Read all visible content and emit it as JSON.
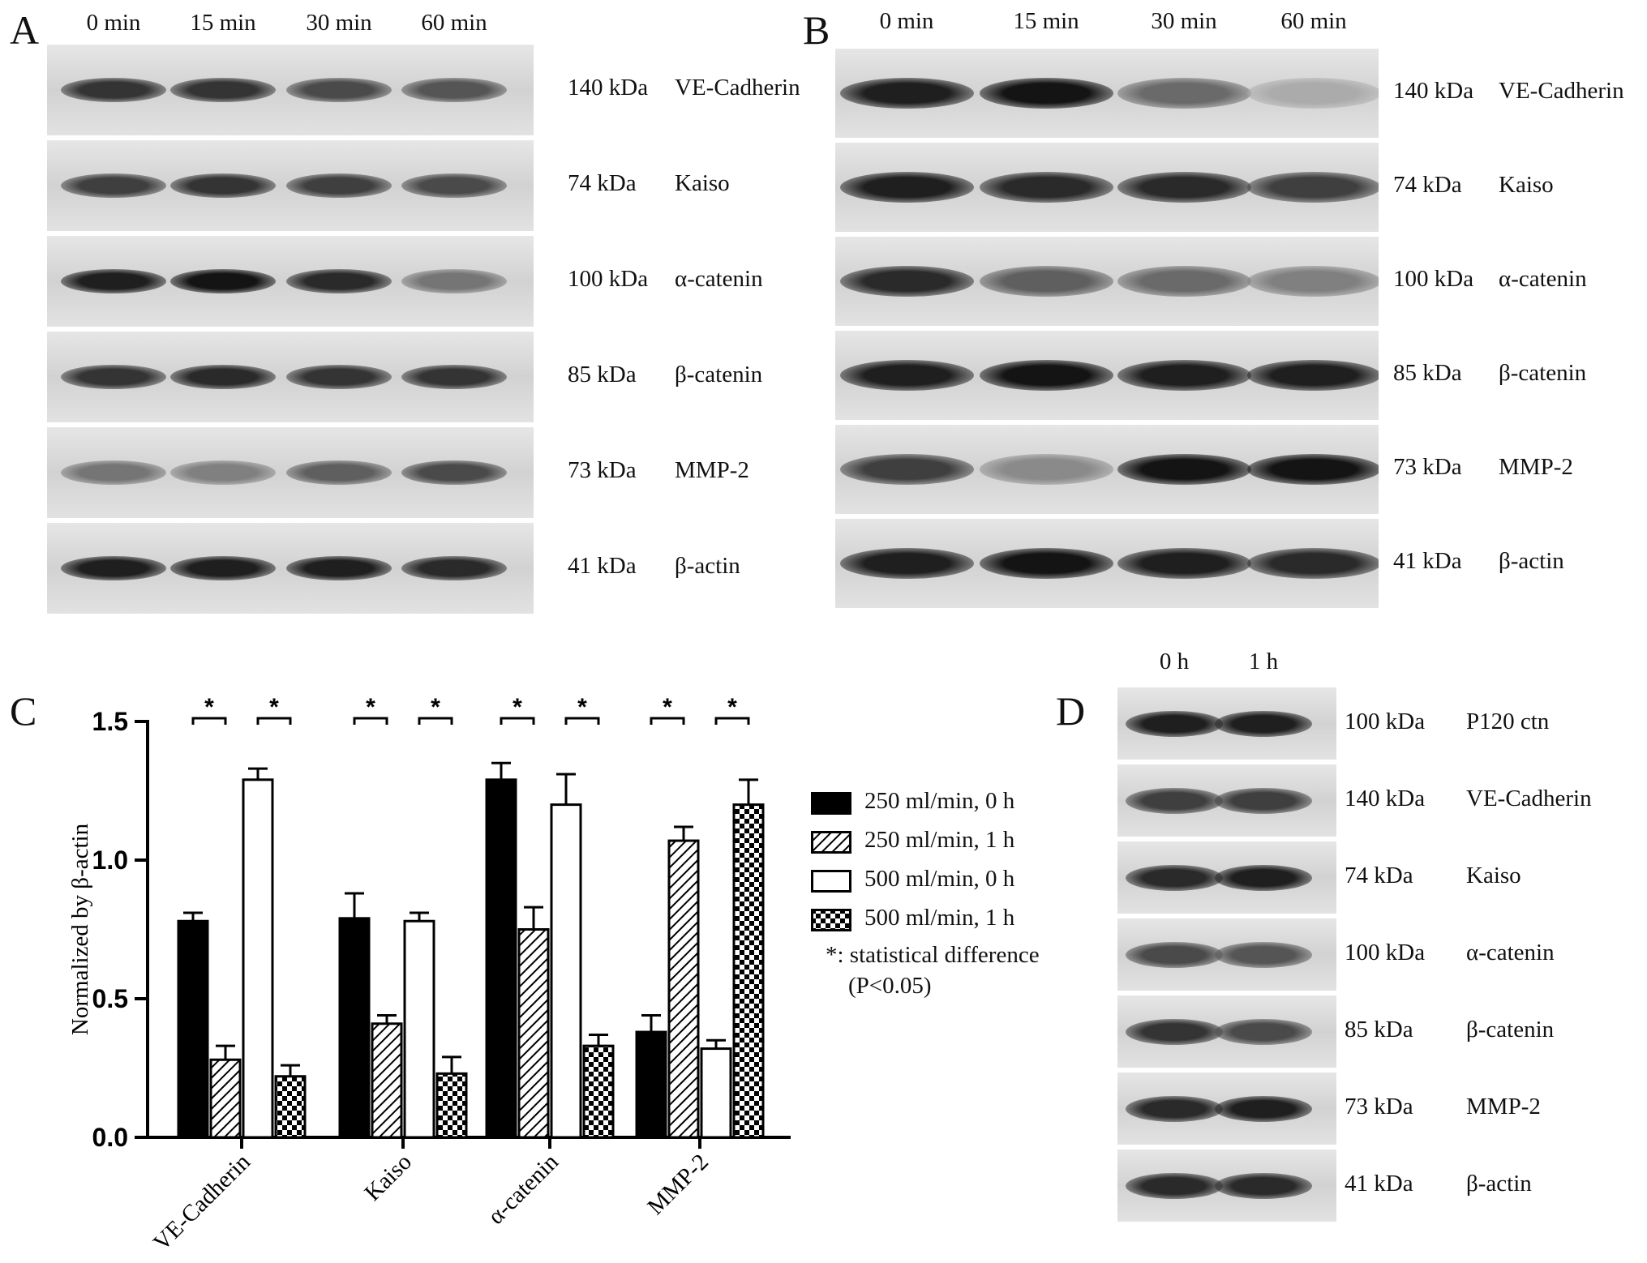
{
  "panels": {
    "A": {
      "letter": "A",
      "headers": [
        "0 min",
        "15 min",
        "30 min",
        "60 min"
      ],
      "rows": [
        {
          "kda": "140 kDa",
          "protein": "VE-Cadherin",
          "intensity": [
            0.85,
            0.85,
            0.75,
            0.7
          ]
        },
        {
          "kda": "74 kDa",
          "protein": "Kaiso",
          "intensity": [
            0.8,
            0.85,
            0.8,
            0.75
          ]
        },
        {
          "kda": "100 kDa",
          "protein": "α-catenin",
          "intensity": [
            0.95,
            1.0,
            0.9,
            0.55
          ]
        },
        {
          "kda": "85 kDa",
          "protein": "β-catenin",
          "intensity": [
            0.85,
            0.9,
            0.85,
            0.85
          ]
        },
        {
          "kda": "73 kDa",
          "protein": "MMP-2",
          "intensity": [
            0.55,
            0.5,
            0.65,
            0.75
          ]
        },
        {
          "kda": "41 kDa",
          "protein": "β-actin",
          "intensity": [
            0.95,
            0.95,
            0.95,
            0.9
          ]
        }
      ]
    },
    "B": {
      "letter": "B",
      "headers": [
        "0 min",
        "15 min",
        "30 min",
        "60 min"
      ],
      "rows": [
        {
          "kda": "140 kDa",
          "protein": "VE-Cadherin",
          "intensity": [
            0.95,
            1.0,
            0.6,
            0.3
          ]
        },
        {
          "kda": "74 kDa",
          "protein": "Kaiso",
          "intensity": [
            0.95,
            0.9,
            0.9,
            0.8
          ]
        },
        {
          "kda": "100 kDa",
          "protein": "α-catenin",
          "intensity": [
            0.9,
            0.65,
            0.6,
            0.5
          ]
        },
        {
          "kda": "85 kDa",
          "protein": "β-catenin",
          "intensity": [
            0.95,
            1.0,
            0.95,
            0.95
          ]
        },
        {
          "kda": "73 kDa",
          "protein": "MMP-2",
          "intensity": [
            0.8,
            0.45,
            1.0,
            1.0
          ]
        },
        {
          "kda": "41 kDa",
          "protein": "β-actin",
          "intensity": [
            0.95,
            1.0,
            0.95,
            0.9
          ]
        }
      ]
    },
    "C": {
      "letter": "C"
    },
    "D": {
      "letter": "D",
      "headers": [
        "0 h",
        "1 h"
      ],
      "rows": [
        {
          "kda": "100 kDa",
          "protein": "P120 ctn",
          "intensity": [
            0.95,
            0.95
          ]
        },
        {
          "kda": "140 kDa",
          "protein": "VE-Cadherin",
          "intensity": [
            0.8,
            0.8
          ]
        },
        {
          "kda": "74 kDa",
          "protein": "Kaiso",
          "intensity": [
            0.9,
            0.95
          ]
        },
        {
          "kda": "100 kDa",
          "protein": "α-catenin",
          "intensity": [
            0.75,
            0.7
          ]
        },
        {
          "kda": "85 kDa",
          "protein": "β-catenin",
          "intensity": [
            0.85,
            0.75
          ]
        },
        {
          "kda": "73 kDa",
          "protein": "MMP-2",
          "intensity": [
            0.9,
            0.95
          ]
        },
        {
          "kda": "41 kDa",
          "protein": "β-actin",
          "intensity": [
            0.9,
            0.9
          ]
        }
      ]
    }
  },
  "chart_data": {
    "type": "bar",
    "title": "",
    "xlabel": "",
    "ylabel": "Normalized by β-actin",
    "ylim": [
      0,
      1.5
    ],
    "yticks": [
      "0.0",
      "0.5",
      "1.0",
      "1.5"
    ],
    "categories": [
      "VE-Cadherin",
      "Kaiso",
      "α-catenin",
      "MMP-2"
    ],
    "series": [
      {
        "name": "250 ml/min, 0 h",
        "pattern": "solid",
        "values": [
          0.78,
          0.79,
          1.29,
          0.38
        ],
        "errors": [
          0.03,
          0.09,
          0.06,
          0.06
        ]
      },
      {
        "name": "250 ml/min, 1 h",
        "pattern": "hatch",
        "values": [
          0.28,
          0.41,
          0.75,
          1.07
        ],
        "errors": [
          0.05,
          0.03,
          0.08,
          0.05
        ]
      },
      {
        "name": "500 ml/min, 0 h",
        "pattern": "open",
        "values": [
          1.29,
          0.78,
          1.2,
          0.32
        ],
        "errors": [
          0.04,
          0.03,
          0.11,
          0.03
        ]
      },
      {
        "name": "500 ml/min, 1 h",
        "pattern": "checker",
        "values": [
          0.22,
          0.23,
          0.33,
          1.2
        ],
        "errors": [
          0.04,
          0.06,
          0.04,
          0.09
        ]
      }
    ],
    "significance_marker": "*",
    "legend_position": "right",
    "note_line1": "*: statistical difference",
    "note_line2": "(P<0.05)"
  }
}
